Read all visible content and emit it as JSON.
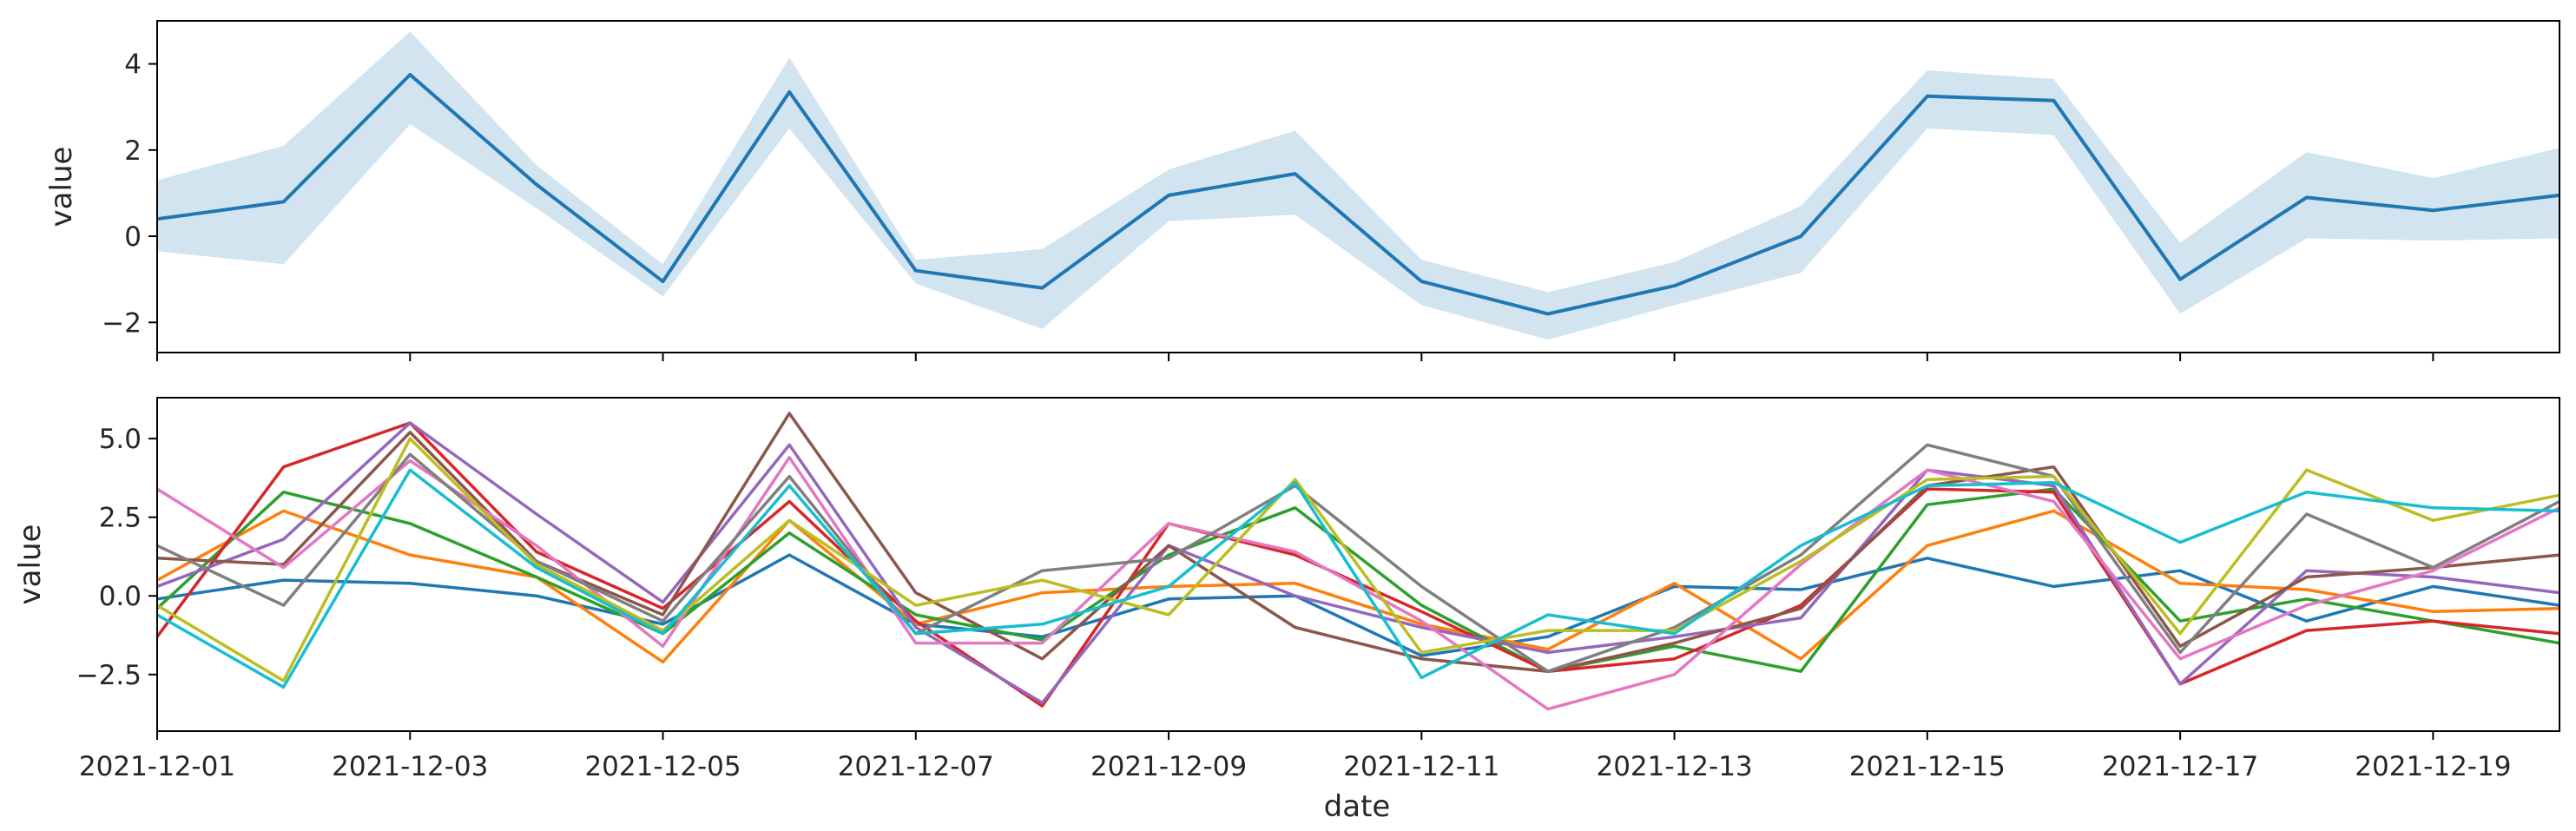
{
  "chart_data": [
    {
      "type": "area",
      "panel": "top",
      "xlabel": "",
      "ylabel": "value",
      "ylim": [
        -2.7,
        5.0
      ],
      "yticks": [
        -2,
        0,
        2,
        4
      ],
      "grid": false,
      "legend": "none",
      "x": [
        "2021-12-01",
        "2021-12-02",
        "2021-12-03",
        "2021-12-04",
        "2021-12-05",
        "2021-12-06",
        "2021-12-07",
        "2021-12-08",
        "2021-12-09",
        "2021-12-10",
        "2021-12-11",
        "2021-12-12",
        "2021-12-13",
        "2021-12-14",
        "2021-12-15",
        "2021-12-16",
        "2021-12-17",
        "2021-12-18",
        "2021-12-19",
        "2021-12-20"
      ],
      "series": [
        {
          "values": [
            0.4,
            0.8,
            3.75,
            1.2,
            -1.05,
            3.35,
            -0.8,
            -1.2,
            0.95,
            1.45,
            -1.05,
            -1.8,
            -1.15,
            0.0,
            3.25,
            3.15,
            -1.0,
            0.9,
            0.6,
            0.95
          ],
          "lower": [
            -0.35,
            -0.65,
            2.6,
            0.65,
            -1.4,
            2.5,
            -1.1,
            -2.15,
            0.35,
            0.5,
            -1.6,
            -2.4,
            -1.6,
            -0.85,
            2.5,
            2.35,
            -1.8,
            -0.05,
            -0.1,
            -0.05
          ],
          "upper": [
            1.3,
            2.1,
            4.75,
            1.65,
            -0.65,
            4.15,
            -0.55,
            -0.3,
            1.55,
            2.45,
            -0.55,
            -1.3,
            -0.6,
            0.7,
            3.85,
            3.65,
            -0.15,
            1.95,
            1.35,
            2.05
          ],
          "color": "#1f77b4"
        }
      ]
    },
    {
      "type": "line",
      "panel": "bottom",
      "xlabel": "date",
      "ylabel": "value",
      "ylim": [
        -4.3,
        6.3
      ],
      "yticks": [
        -2.5,
        0.0,
        2.5,
        5.0
      ],
      "ytick_labels": [
        "−2.5",
        "0.0",
        "2.5",
        "5.0"
      ],
      "xticks": [
        "2021-12-01",
        "2021-12-03",
        "2021-12-05",
        "2021-12-07",
        "2021-12-09",
        "2021-12-11",
        "2021-12-13",
        "2021-12-15",
        "2021-12-17",
        "2021-12-19"
      ],
      "grid": false,
      "legend": "none",
      "x": [
        "2021-12-01",
        "2021-12-02",
        "2021-12-03",
        "2021-12-04",
        "2021-12-05",
        "2021-12-06",
        "2021-12-07",
        "2021-12-08",
        "2021-12-09",
        "2021-12-10",
        "2021-12-11",
        "2021-12-12",
        "2021-12-13",
        "2021-12-14",
        "2021-12-15",
        "2021-12-16",
        "2021-12-17",
        "2021-12-18",
        "2021-12-19",
        "2021-12-20"
      ],
      "series": [
        {
          "color": "#1f77b4",
          "values": [
            -0.1,
            0.5,
            0.4,
            0.0,
            -0.9,
            1.3,
            -0.9,
            -1.3,
            -0.1,
            0.0,
            -1.9,
            -1.3,
            0.3,
            0.2,
            1.2,
            0.3,
            0.8,
            -0.8,
            0.3,
            -0.3
          ]
        },
        {
          "color": "#ff7f0e",
          "values": [
            0.5,
            2.7,
            1.3,
            0.6,
            -2.1,
            2.4,
            -0.9,
            0.1,
            0.3,
            0.4,
            -0.9,
            -1.7,
            0.4,
            -2.0,
            1.6,
            2.7,
            0.4,
            0.2,
            -0.5,
            -0.4
          ]
        },
        {
          "color": "#2ca02c",
          "values": [
            -0.4,
            3.3,
            2.3,
            0.6,
            -1.2,
            2.0,
            -0.6,
            -1.4,
            1.3,
            2.8,
            -0.3,
            -2.4,
            -1.6,
            -2.4,
            2.9,
            3.4,
            -0.8,
            -0.1,
            -0.8,
            -1.5
          ]
        },
        {
          "color": "#d62728",
          "values": [
            -1.3,
            4.1,
            5.5,
            1.4,
            -0.4,
            3.0,
            -0.8,
            -3.5,
            2.3,
            1.3,
            -0.5,
            -2.4,
            -2.0,
            -0.3,
            3.4,
            3.3,
            -2.8,
            -1.1,
            -0.8,
            -1.2
          ]
        },
        {
          "color": "#9467bd",
          "values": [
            0.3,
            1.8,
            5.5,
            2.6,
            -0.2,
            4.8,
            -1.0,
            -3.4,
            1.6,
            0.0,
            -1.0,
            -1.8,
            -1.3,
            -0.7,
            4.0,
            3.5,
            -2.8,
            0.8,
            0.6,
            0.1
          ]
        },
        {
          "color": "#8c564b",
          "values": [
            1.2,
            1.0,
            5.2,
            1.1,
            -0.6,
            5.8,
            0.1,
            -2.0,
            1.6,
            -1.0,
            -2.0,
            -2.4,
            -1.5,
            -0.4,
            3.5,
            4.1,
            -1.6,
            0.6,
            0.9,
            1.3
          ]
        },
        {
          "color": "#e377c2",
          "values": [
            3.4,
            0.9,
            4.3,
            1.6,
            -1.6,
            4.4,
            -1.5,
            -1.5,
            2.3,
            1.4,
            -0.8,
            -3.6,
            -2.5,
            1.0,
            4.0,
            3.0,
            -2.0,
            -0.3,
            0.8,
            2.8
          ]
        },
        {
          "color": "#7f7f7f",
          "values": [
            1.6,
            -0.3,
            4.5,
            1.1,
            -0.8,
            3.8,
            -1.2,
            0.8,
            1.2,
            3.5,
            0.3,
            -2.4,
            -1.0,
            1.3,
            4.8,
            3.8,
            -1.8,
            2.6,
            0.9,
            3.0
          ]
        },
        {
          "color": "#bcbd22",
          "values": [
            -0.3,
            -2.7,
            5.0,
            1.0,
            -1.1,
            2.4,
            -0.3,
            0.5,
            -0.6,
            3.7,
            -1.8,
            -1.1,
            -1.1,
            1.1,
            3.7,
            3.8,
            -1.2,
            4.0,
            2.4,
            3.2
          ]
        },
        {
          "color": "#17becf",
          "values": [
            -0.6,
            -2.9,
            4.0,
            0.9,
            -1.2,
            3.5,
            -1.2,
            -0.9,
            0.3,
            3.6,
            -2.6,
            -0.6,
            -1.2,
            1.6,
            3.5,
            3.6,
            1.7,
            3.3,
            2.8,
            2.7
          ]
        }
      ]
    }
  ]
}
